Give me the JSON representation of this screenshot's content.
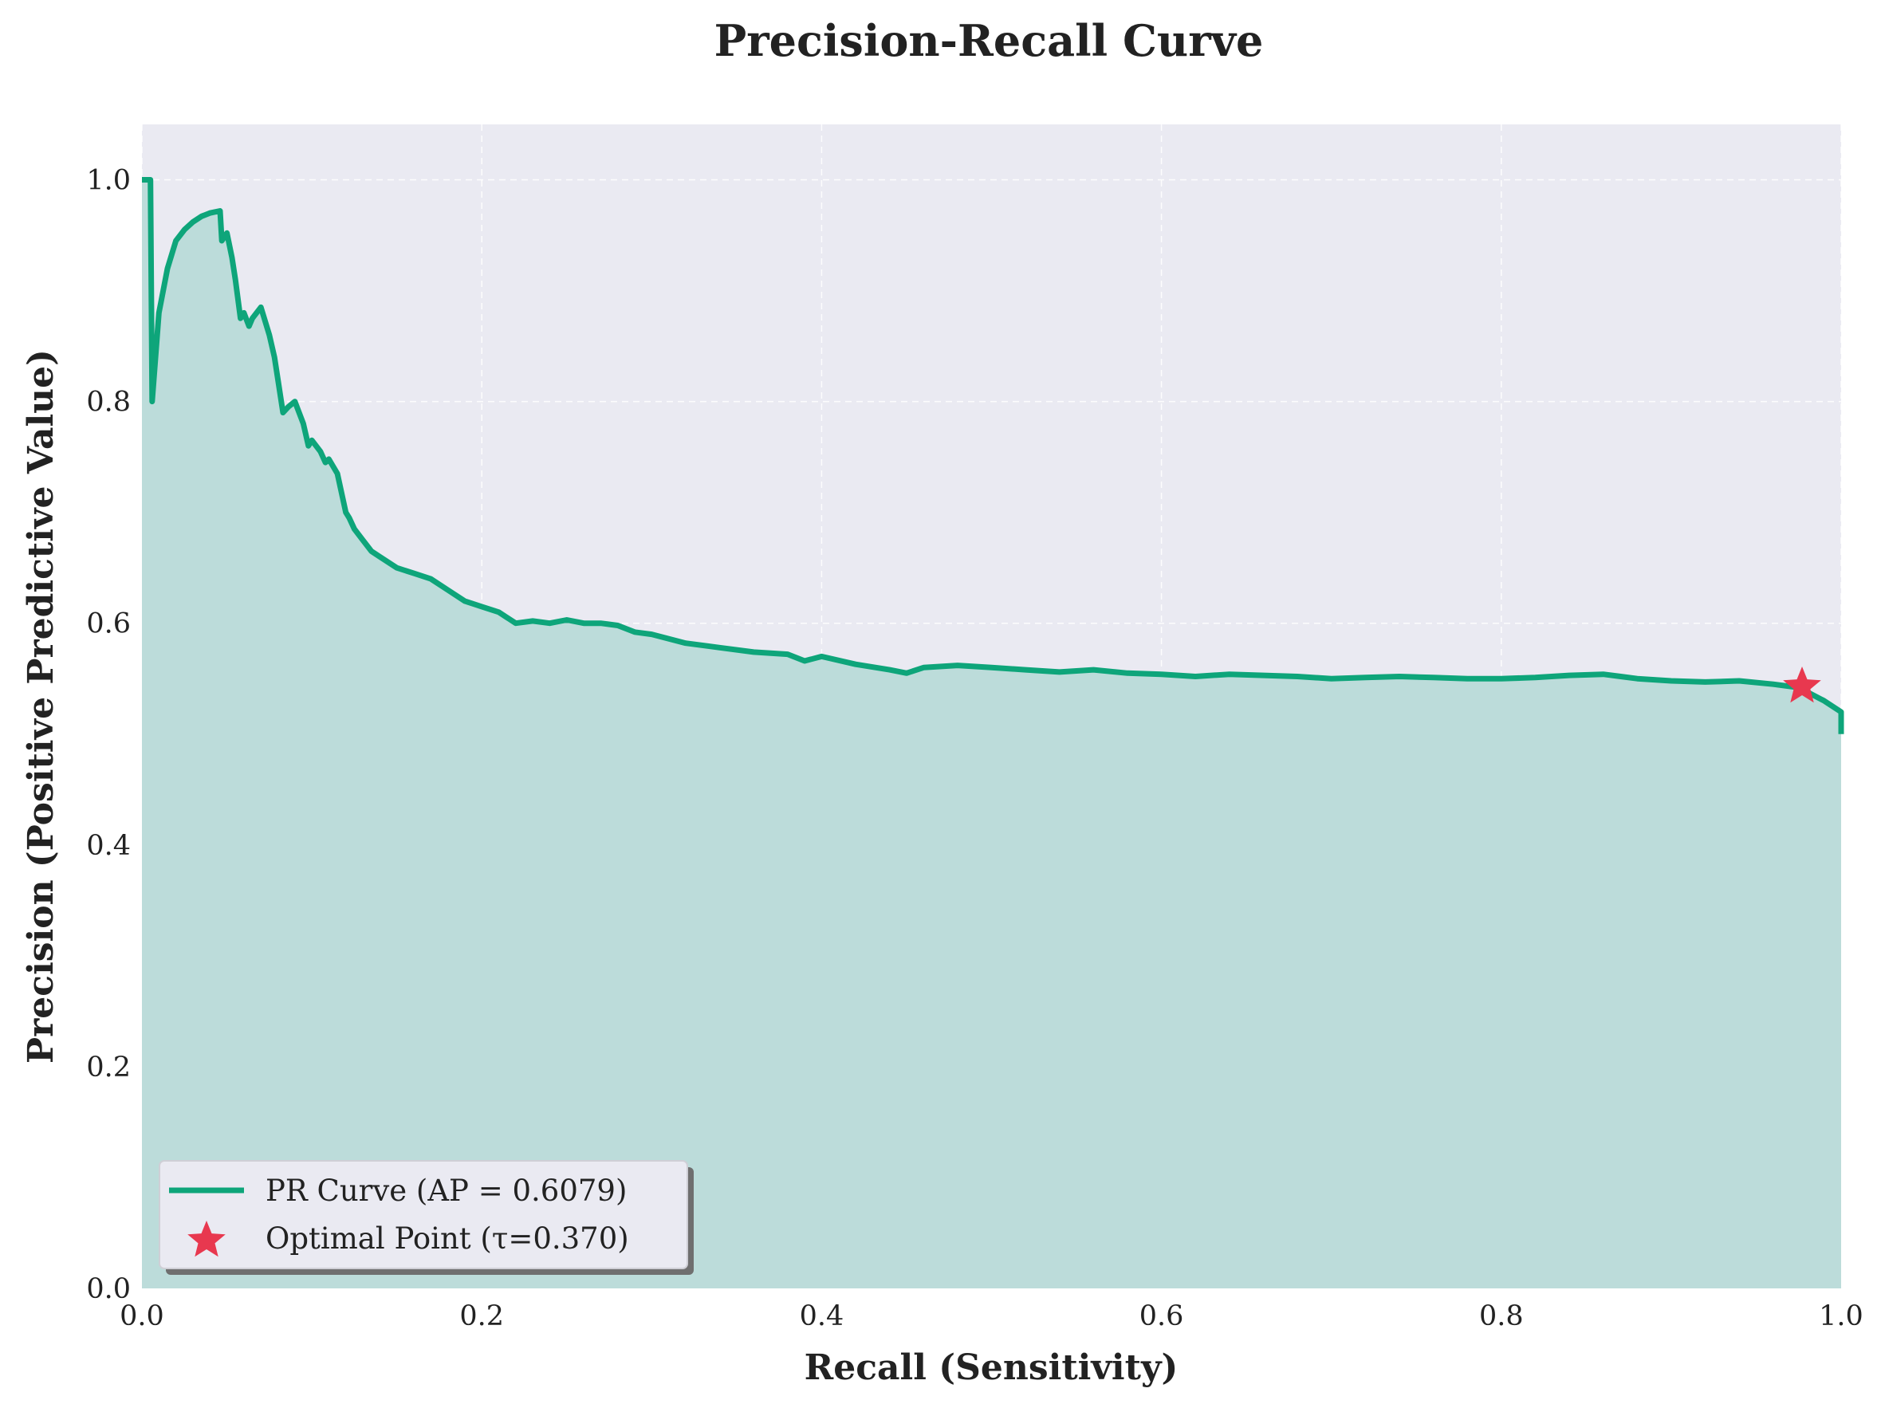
{
  "chart_data": {
    "type": "line",
    "title": "Precision-Recall Curve",
    "xlabel": "Recall (Sensitivity)",
    "ylabel": "Precision (Positive Predictive Value)",
    "xlim": [
      0,
      1
    ],
    "ylim": [
      0,
      1.05
    ],
    "xticks": [
      "0.0",
      "0.2",
      "0.4",
      "0.6",
      "0.8",
      "1.0"
    ],
    "yticks": [
      "0.0",
      "0.2",
      "0.4",
      "0.6",
      "0.8",
      "1.0"
    ],
    "grid": true,
    "legend_position": "lower-left",
    "colors": {
      "curve": "#0ea57a",
      "fill": "#bcdcda",
      "plot_background": "#eaeaf2",
      "optimal_marker": "#e8384f"
    },
    "series": [
      {
        "name": "PR Curve (AP = 0.6079)",
        "x": [
          0.0,
          0.005,
          0.006,
          0.01,
          0.015,
          0.02,
          0.025,
          0.03,
          0.035,
          0.04,
          0.046,
          0.047,
          0.05,
          0.053,
          0.055,
          0.058,
          0.06,
          0.063,
          0.065,
          0.07,
          0.075,
          0.078,
          0.08,
          0.083,
          0.086,
          0.09,
          0.095,
          0.098,
          0.1,
          0.105,
          0.108,
          0.11,
          0.115,
          0.12,
          0.122,
          0.125,
          0.13,
          0.135,
          0.14,
          0.15,
          0.16,
          0.17,
          0.18,
          0.19,
          0.2,
          0.21,
          0.22,
          0.23,
          0.24,
          0.25,
          0.26,
          0.27,
          0.28,
          0.29,
          0.3,
          0.32,
          0.34,
          0.36,
          0.38,
          0.39,
          0.4,
          0.42,
          0.44,
          0.45,
          0.46,
          0.48,
          0.5,
          0.52,
          0.54,
          0.56,
          0.58,
          0.6,
          0.62,
          0.64,
          0.66,
          0.68,
          0.7,
          0.72,
          0.74,
          0.76,
          0.78,
          0.8,
          0.82,
          0.84,
          0.86,
          0.88,
          0.9,
          0.92,
          0.94,
          0.96,
          0.975,
          0.99,
          1.0,
          1.0
        ],
        "y": [
          1.0,
          1.0,
          0.8,
          0.88,
          0.92,
          0.945,
          0.955,
          0.962,
          0.967,
          0.97,
          0.972,
          0.945,
          0.952,
          0.93,
          0.91,
          0.875,
          0.88,
          0.868,
          0.875,
          0.885,
          0.86,
          0.84,
          0.82,
          0.79,
          0.795,
          0.8,
          0.78,
          0.76,
          0.765,
          0.755,
          0.745,
          0.748,
          0.735,
          0.7,
          0.695,
          0.685,
          0.675,
          0.665,
          0.66,
          0.65,
          0.645,
          0.64,
          0.63,
          0.62,
          0.615,
          0.61,
          0.6,
          0.602,
          0.6,
          0.603,
          0.6,
          0.6,
          0.598,
          0.592,
          0.59,
          0.582,
          0.578,
          0.574,
          0.572,
          0.566,
          0.57,
          0.563,
          0.558,
          0.555,
          0.56,
          0.562,
          0.56,
          0.558,
          0.556,
          0.558,
          0.555,
          0.554,
          0.552,
          0.554,
          0.553,
          0.552,
          0.55,
          0.551,
          0.552,
          0.551,
          0.55,
          0.55,
          0.551,
          0.553,
          0.554,
          0.55,
          0.548,
          0.547,
          0.548,
          0.545,
          0.542,
          0.53,
          0.52,
          0.5
        ]
      }
    ],
    "optimal_point": {
      "name": "Optimal Point (τ=0.370)",
      "x": 0.977,
      "y": 0.543
    }
  }
}
